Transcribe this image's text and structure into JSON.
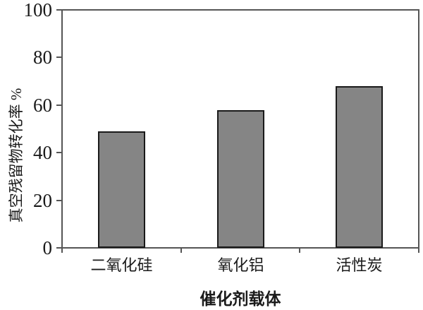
{
  "chart_data": {
    "type": "bar",
    "title": "",
    "categories": [
      "二氧化硅",
      "氧化铝",
      "活性炭"
    ],
    "values": [
      49,
      58,
      68
    ],
    "series": [
      {
        "name": "真空残留物转化率",
        "values": [
          49,
          58,
          68
        ]
      }
    ],
    "xlabel": "催化剂载体",
    "ylabel": "真空残留物转化率 %",
    "yticks": [
      0,
      20,
      40,
      60,
      80,
      100
    ],
    "ylim": [
      0,
      100
    ],
    "grid": false,
    "legend": false,
    "colors": {
      "bar_fill": "#858585",
      "bar_border": "#1a1a1a",
      "axis": "#555555",
      "text": "#1a1a1a",
      "background": "#ffffff"
    }
  }
}
